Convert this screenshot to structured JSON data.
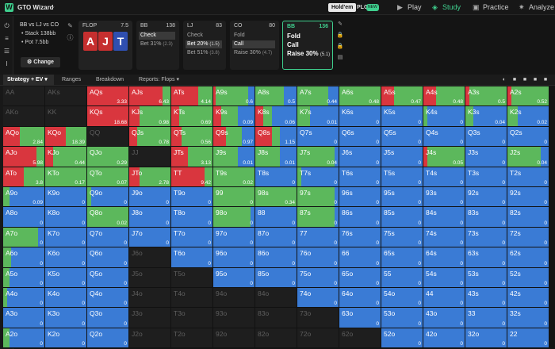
{
  "app": {
    "name": "GTO Wizard",
    "logo": "W",
    "mode_holdem": "Hold'em",
    "mode_plo": "PLO",
    "new_badge": "NEW"
  },
  "nav": [
    {
      "label": "Play",
      "icon": "play-icon"
    },
    {
      "label": "Study",
      "icon": "study-icon"
    },
    {
      "label": "Practice",
      "icon": "practice-icon"
    },
    {
      "label": "Analyze",
      "icon": "analyze-icon"
    }
  ],
  "colors": {
    "fold": "#3a7bd5",
    "call": "#5cb85c",
    "raise": "#d9363e",
    "accent": "#3fcf8e"
  },
  "info": {
    "positions": "BB vs LJ vs CO",
    "stack": "• Stack 138bb",
    "pot": "• Pot 7.5bb",
    "change": "Change"
  },
  "flop": {
    "label": "FLOP",
    "pot": "7.5",
    "cards": [
      {
        "rank": "A",
        "color": "#c62f2f"
      },
      {
        "rank": "J",
        "color": "#c62f2f"
      },
      {
        "rank": "T",
        "color": "#2f4fb0"
      }
    ]
  },
  "actions": [
    {
      "pos": "BB",
      "stack": "138",
      "rows": [
        {
          "label": "Check",
          "sub": "",
          "sel": true
        },
        {
          "label": "Bet 31%",
          "sub": "(2.3)",
          "sel": false
        }
      ]
    },
    {
      "pos": "LJ",
      "stack": "83",
      "rows": [
        {
          "label": "Check",
          "sub": "",
          "sel": false
        },
        {
          "label": "Bet 20%",
          "sub": "(1.5)",
          "sel": true
        },
        {
          "label": "Bet 51%",
          "sub": "(3.8)",
          "sel": false
        }
      ]
    },
    {
      "pos": "CO",
      "stack": "80",
      "rows": [
        {
          "label": "Fold",
          "sub": "",
          "sel": false
        },
        {
          "label": "Call",
          "sub": "",
          "sel": true
        },
        {
          "label": "Raise 30%",
          "sub": "(4.7)",
          "sel": false
        }
      ]
    },
    {
      "pos": "BB",
      "stack": "136",
      "rows": [
        {
          "label": "Fold",
          "sub": "",
          "sel": false
        },
        {
          "label": "Call",
          "sub": "",
          "sel": false
        },
        {
          "label": "Raise 30%",
          "sub": "(5.1)",
          "sel": false
        }
      ]
    }
  ],
  "tabs": {
    "strategy": "Strategy + EV",
    "ranges": "Ranges",
    "breakdown": "Breakdown",
    "reports": "Reports: Flops"
  },
  "grid": [
    [
      [
        "AA",
        null,
        null
      ],
      [
        "AKs",
        null,
        null
      ],
      [
        "AQs",
        "3.33",
        [
          0,
          0,
          100
        ]
      ],
      [
        "AJs",
        "6.43",
        [
          0,
          20,
          80
        ]
      ],
      [
        "ATs",
        "4.14",
        [
          0,
          35,
          65
        ]
      ],
      [
        "A9s",
        "0.6",
        [
          15,
          80,
          5
        ]
      ],
      [
        "A8s",
        "0.5",
        [
          30,
          70,
          0
        ]
      ],
      [
        "A7s",
        "0.44",
        [
          25,
          75,
          0
        ]
      ],
      [
        "A6s",
        "0.48",
        [
          0,
          100,
          0
        ]
      ],
      [
        "A5s",
        "0.47",
        [
          0,
          70,
          30
        ]
      ],
      [
        "A4s",
        "0.48",
        [
          0,
          70,
          30
        ]
      ],
      [
        "A3s",
        "0.5",
        [
          0,
          90,
          10
        ]
      ],
      [
        "A2s",
        "0.52",
        [
          0,
          90,
          10
        ]
      ]
    ],
    [
      [
        "AKo",
        null,
        null
      ],
      [
        "KK",
        null,
        null
      ],
      [
        "KQs",
        "18.68",
        [
          0,
          0,
          100
        ]
      ],
      [
        "KJs",
        "0.98",
        [
          0,
          75,
          25
        ]
      ],
      [
        "KTs",
        "0.69",
        [
          0,
          80,
          20
        ]
      ],
      [
        "K9s",
        "0.09",
        [
          40,
          40,
          20
        ]
      ],
      [
        "K8s",
        "0.06",
        [
          60,
          20,
          20
        ]
      ],
      [
        "K7s",
        "0.01",
        [
          70,
          30,
          0
        ]
      ],
      [
        "K6s",
        "0",
        [
          100,
          0,
          0
        ]
      ],
      [
        "K5s",
        "0",
        [
          100,
          0,
          0
        ]
      ],
      [
        "K4s",
        "0",
        [
          90,
          10,
          0
        ]
      ],
      [
        "K3s",
        "0.04",
        [
          80,
          20,
          0
        ]
      ],
      [
        "K2s",
        "0.02",
        [
          75,
          25,
          0
        ]
      ]
    ],
    [
      [
        "AQo",
        "2.84",
        [
          0,
          60,
          40
        ]
      ],
      [
        "KQo",
        "18.39",
        [
          0,
          50,
          50
        ]
      ],
      [
        "QQ",
        null,
        null
      ],
      [
        "QJs",
        "0.78",
        [
          0,
          80,
          20
        ]
      ],
      [
        "QTs",
        "0.56",
        [
          0,
          75,
          25
        ]
      ],
      [
        "Q9s",
        "0.97",
        [
          30,
          40,
          30
        ]
      ],
      [
        "Q8s",
        "1.15",
        [
          40,
          20,
          40
        ]
      ],
      [
        "Q7s",
        "0",
        [
          100,
          0,
          0
        ]
      ],
      [
        "Q6s",
        "0",
        [
          100,
          0,
          0
        ]
      ],
      [
        "Q5s",
        "0",
        [
          100,
          0,
          0
        ]
      ],
      [
        "Q4s",
        "0",
        [
          100,
          0,
          0
        ]
      ],
      [
        "Q3s",
        "0",
        [
          100,
          0,
          0
        ]
      ],
      [
        "Q2s",
        "0",
        [
          100,
          0,
          0
        ]
      ]
    ],
    [
      [
        "AJo",
        "5.98",
        [
          0,
          20,
          80
        ]
      ],
      [
        "KJo",
        "0.44",
        [
          0,
          80,
          20
        ]
      ],
      [
        "QJo",
        "0.29",
        [
          0,
          100,
          0
        ]
      ],
      [
        "JJ",
        null,
        null
      ],
      [
        "JTs",
        "3.13",
        [
          0,
          60,
          40
        ]
      ],
      [
        "J9s",
        "0.01",
        [
          40,
          60,
          0
        ]
      ],
      [
        "J8s",
        "0.01",
        [
          40,
          60,
          0
        ]
      ],
      [
        "J7s",
        "0.04",
        [
          10,
          90,
          0
        ]
      ],
      [
        "J6s",
        "0",
        [
          100,
          0,
          0
        ]
      ],
      [
        "J5s",
        "0",
        [
          100,
          0,
          0
        ]
      ],
      [
        "J4s",
        "0.05",
        [
          0,
          90,
          10
        ]
      ],
      [
        "J3s",
        "0",
        [
          100,
          0,
          0
        ]
      ],
      [
        "J2s",
        "0.04",
        [
          20,
          80,
          0
        ]
      ]
    ],
    [
      [
        "ATo",
        "3.8",
        [
          0,
          50,
          50
        ]
      ],
      [
        "KTo",
        "0.17",
        [
          0,
          100,
          0
        ]
      ],
      [
        "QTo",
        "0.07",
        [
          0,
          100,
          0
        ]
      ],
      [
        "JTo",
        "2.78",
        [
          0,
          75,
          25
        ]
      ],
      [
        "TT",
        "9.42",
        [
          0,
          20,
          80
        ]
      ],
      [
        "T9s",
        "0.02",
        [
          0,
          100,
          0
        ]
      ],
      [
        "T8s",
        "0",
        [
          100,
          0,
          0
        ]
      ],
      [
        "T7s",
        "0",
        [
          90,
          10,
          0
        ]
      ],
      [
        "T6s",
        "0",
        [
          100,
          0,
          0
        ]
      ],
      [
        "T5s",
        "0",
        [
          100,
          0,
          0
        ]
      ],
      [
        "T4s",
        "0",
        [
          100,
          0,
          0
        ]
      ],
      [
        "T3s",
        "0",
        [
          100,
          0,
          0
        ]
      ],
      [
        "T2s",
        "0",
        [
          100,
          0,
          0
        ]
      ]
    ],
    [
      [
        "A9o",
        "0.09",
        [
          85,
          15,
          0
        ]
      ],
      [
        "K9o",
        "0",
        [
          100,
          0,
          0
        ]
      ],
      [
        "Q9o",
        "0",
        [
          90,
          10,
          0
        ]
      ],
      [
        "J9o",
        "0",
        [
          100,
          0,
          0
        ]
      ],
      [
        "T9o",
        "0",
        [
          100,
          0,
          0
        ]
      ],
      [
        "99",
        "0",
        [
          0,
          100,
          0
        ]
      ],
      [
        "98s",
        "0.34",
        [
          0,
          100,
          0
        ]
      ],
      [
        "97s",
        "0",
        [
          10,
          90,
          0
        ]
      ],
      [
        "96s",
        "0",
        [
          100,
          0,
          0
        ]
      ],
      [
        "95s",
        "0",
        [
          100,
          0,
          0
        ]
      ],
      [
        "93s",
        "0",
        [
          100,
          0,
          0
        ]
      ],
      [
        "92s",
        "0",
        [
          100,
          0,
          0
        ]
      ],
      [
        "92s",
        "0",
        [
          100,
          0,
          0
        ]
      ]
    ],
    [
      [
        "A8o",
        "0",
        [
          100,
          0,
          0
        ]
      ],
      [
        "K8o",
        "0",
        [
          100,
          0,
          0
        ]
      ],
      [
        "Q8o",
        "0.02",
        [
          0,
          100,
          0
        ]
      ],
      [
        "J8o",
        "0",
        [
          100,
          0,
          0
        ]
      ],
      [
        "T8o",
        "0",
        [
          100,
          0,
          0
        ]
      ],
      [
        "98o",
        "0",
        [
          10,
          90,
          0
        ]
      ],
      [
        "88",
        "0",
        [
          100,
          0,
          0
        ]
      ],
      [
        "87s",
        "0",
        [
          10,
          90,
          0
        ]
      ],
      [
        "86s",
        "0",
        [
          100,
          0,
          0
        ]
      ],
      [
        "85s",
        "0",
        [
          100,
          0,
          0
        ]
      ],
      [
        "84s",
        "0",
        [
          100,
          0,
          0
        ]
      ],
      [
        "83s",
        "0",
        [
          100,
          0,
          0
        ]
      ],
      [
        "82s",
        "0",
        [
          100,
          0,
          0
        ]
      ]
    ],
    [
      [
        "A7o",
        "0",
        [
          15,
          85,
          0
        ]
      ],
      [
        "K7o",
        "0",
        [
          100,
          0,
          0
        ]
      ],
      [
        "Q7o",
        "0",
        [
          100,
          0,
          0
        ]
      ],
      [
        "J7o",
        "0",
        [
          100,
          0,
          0
        ]
      ],
      [
        "T7o",
        "0",
        [
          100,
          0,
          0
        ]
      ],
      [
        "97o",
        "0",
        [
          100,
          0,
          0
        ]
      ],
      [
        "87o",
        "0",
        [
          100,
          0,
          0
        ]
      ],
      [
        "77",
        "0",
        [
          100,
          0,
          0
        ]
      ],
      [
        "76s",
        "0",
        [
          100,
          0,
          0
        ]
      ],
      [
        "75s",
        "0",
        [
          100,
          0,
          0
        ]
      ],
      [
        "74s",
        "0",
        [
          100,
          0,
          0
        ]
      ],
      [
        "73s",
        "0",
        [
          100,
          0,
          0
        ]
      ],
      [
        "72s",
        "0",
        [
          100,
          0,
          0
        ]
      ]
    ],
    [
      [
        "A6o",
        "0",
        [
          80,
          20,
          0
        ]
      ],
      [
        "K6o",
        "0",
        [
          100,
          0,
          0
        ]
      ],
      [
        "Q6o",
        "0",
        [
          100,
          0,
          0
        ]
      ],
      [
        "J6o",
        null,
        null
      ],
      [
        "T6o",
        "0",
        [
          100,
          0,
          0
        ]
      ],
      [
        "96o",
        "0",
        [
          100,
          0,
          0
        ]
      ],
      [
        "86o",
        "0",
        [
          100,
          0,
          0
        ]
      ],
      [
        "76o",
        "0",
        [
          100,
          0,
          0
        ]
      ],
      [
        "66",
        "0",
        [
          100,
          0,
          0
        ]
      ],
      [
        "65s",
        "0",
        [
          100,
          0,
          0
        ]
      ],
      [
        "64s",
        "0",
        [
          100,
          0,
          0
        ]
      ],
      [
        "63s",
        "0",
        [
          100,
          0,
          0
        ]
      ],
      [
        "62s",
        "0",
        [
          100,
          0,
          0
        ]
      ]
    ],
    [
      [
        "A5o",
        "0",
        [
          85,
          15,
          0
        ]
      ],
      [
        "K5o",
        "0",
        [
          100,
          0,
          0
        ]
      ],
      [
        "Q5o",
        "0",
        [
          100,
          0,
          0
        ]
      ],
      [
        "J5o",
        null,
        null
      ],
      [
        "T5o",
        null,
        null
      ],
      [
        "95o",
        "0",
        [
          100,
          0,
          0
        ]
      ],
      [
        "85o",
        "0",
        [
          100,
          0,
          0
        ]
      ],
      [
        "75o",
        "0",
        [
          100,
          0,
          0
        ]
      ],
      [
        "65o",
        "0",
        [
          100,
          0,
          0
        ]
      ],
      [
        "55",
        "0",
        [
          100,
          0,
          0
        ]
      ],
      [
        "54s",
        "0",
        [
          100,
          0,
          0
        ]
      ],
      [
        "53s",
        "0",
        [
          100,
          0,
          0
        ]
      ],
      [
        "52s",
        "0",
        [
          100,
          0,
          0
        ]
      ]
    ],
    [
      [
        "A4o",
        "0",
        [
          90,
          10,
          0
        ]
      ],
      [
        "K4o",
        "0",
        [
          100,
          0,
          0
        ]
      ],
      [
        "Q4o",
        "0",
        [
          100,
          0,
          0
        ]
      ],
      [
        "J4o",
        null,
        null
      ],
      [
        "T4o",
        null,
        null
      ],
      [
        "94o",
        null,
        null
      ],
      [
        "84o",
        null,
        null
      ],
      [
        "74o",
        "0",
        [
          100,
          0,
          0
        ]
      ],
      [
        "64o",
        "0",
        [
          100,
          0,
          0
        ]
      ],
      [
        "54o",
        "0",
        [
          100,
          0,
          0
        ]
      ],
      [
        "44",
        "0",
        [
          100,
          0,
          0
        ]
      ],
      [
        "43s",
        "0",
        [
          100,
          0,
          0
        ]
      ],
      [
        "42s",
        "0",
        [
          100,
          0,
          0
        ]
      ]
    ],
    [
      [
        "A3o",
        "0",
        [
          100,
          0,
          0
        ]
      ],
      [
        "K3o",
        "0",
        [
          100,
          0,
          0
        ]
      ],
      [
        "Q3o",
        "0",
        [
          100,
          0,
          0
        ]
      ],
      [
        "J3o",
        null,
        null
      ],
      [
        "T3o",
        null,
        null
      ],
      [
        "93o",
        null,
        null
      ],
      [
        "83o",
        null,
        null
      ],
      [
        "73o",
        null,
        null
      ],
      [
        "63o",
        "0",
        [
          100,
          0,
          0
        ]
      ],
      [
        "53o",
        "0",
        [
          100,
          0,
          0
        ]
      ],
      [
        "43o",
        "0",
        [
          100,
          0,
          0
        ]
      ],
      [
        "33",
        "0",
        [
          100,
          0,
          0
        ]
      ],
      [
        "32s",
        "0",
        [
          100,
          0,
          0
        ]
      ]
    ],
    [
      [
        "A2o",
        "0",
        [
          85,
          15,
          0
        ]
      ],
      [
        "K2o",
        "0",
        [
          100,
          0,
          0
        ]
      ],
      [
        "Q2o",
        "0",
        [
          100,
          0,
          0
        ]
      ],
      [
        "J2o",
        null,
        null
      ],
      [
        "T2o",
        null,
        null
      ],
      [
        "92o",
        null,
        null
      ],
      [
        "82o",
        null,
        null
      ],
      [
        "72o",
        null,
        null
      ],
      [
        "62o",
        null,
        null
      ],
      [
        "52o",
        "0",
        [
          100,
          0,
          0
        ]
      ],
      [
        "42o",
        "0",
        [
          100,
          0,
          0
        ]
      ],
      [
        "32o",
        "0",
        [
          100,
          0,
          0
        ]
      ],
      [
        "22",
        "0",
        [
          100,
          0,
          0
        ]
      ]
    ]
  ]
}
